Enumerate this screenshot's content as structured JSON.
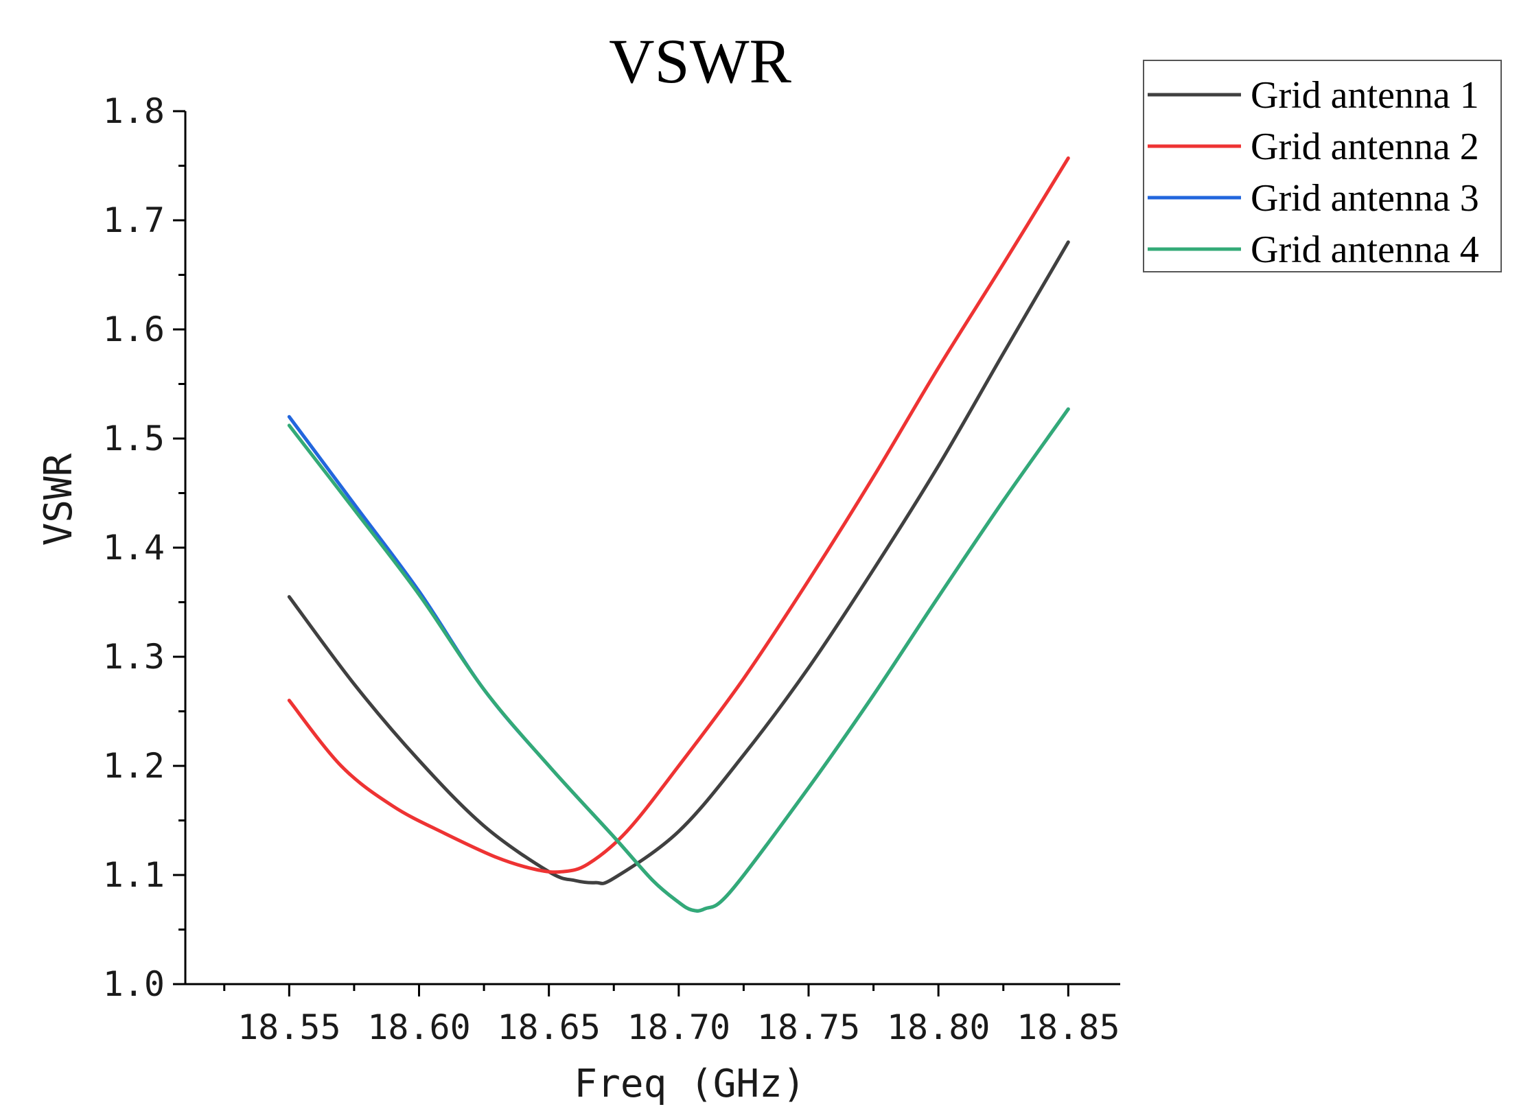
{
  "chart_data": {
    "type": "line",
    "title": "VSWR",
    "xlabel": "Freq (GHz)",
    "ylabel": "VSWR",
    "xlim": [
      18.51,
      18.87
    ],
    "ylim": [
      1.0,
      1.8
    ],
    "x_ticks": [
      18.55,
      18.6,
      18.65,
      18.7,
      18.75,
      18.8,
      18.85
    ],
    "x_tick_labels": [
      "18.55",
      "18.60",
      "18.65",
      "18.70",
      "18.75",
      "18.80",
      "18.85"
    ],
    "y_ticks": [
      1.0,
      1.1,
      1.2,
      1.3,
      1.4,
      1.5,
      1.6,
      1.7,
      1.8
    ],
    "y_tick_labels": [
      "1.0",
      "1.1",
      "1.2",
      "1.3",
      "1.4",
      "1.5",
      "1.6",
      "1.7",
      "1.8"
    ],
    "grid": false,
    "legend_position": "top-right outside",
    "series": [
      {
        "name": "Grid antenna 1",
        "color": "#404040",
        "x": [
          18.55,
          18.575,
          18.6,
          18.625,
          18.65,
          18.66,
          18.668,
          18.675,
          18.7,
          18.725,
          18.75,
          18.775,
          18.8,
          18.825,
          18.85
        ],
        "y": [
          1.355,
          1.275,
          1.205,
          1.145,
          1.103,
          1.095,
          1.093,
          1.097,
          1.14,
          1.21,
          1.29,
          1.38,
          1.475,
          1.578,
          1.68
        ]
      },
      {
        "name": "Grid antenna 2",
        "color": "#ee3333",
        "x": [
          18.55,
          18.57,
          18.59,
          18.61,
          18.63,
          18.645,
          18.655,
          18.665,
          18.68,
          18.7,
          18.725,
          18.75,
          18.775,
          18.8,
          18.825,
          18.85
        ],
        "y": [
          1.26,
          1.2,
          1.163,
          1.138,
          1.116,
          1.105,
          1.103,
          1.11,
          1.14,
          1.2,
          1.28,
          1.37,
          1.465,
          1.565,
          1.66,
          1.757
        ]
      },
      {
        "name": "Grid antenna 3",
        "color": "#2266dd",
        "x": [
          18.55,
          18.575,
          18.6,
          18.625,
          18.65,
          18.675,
          18.69,
          18.7,
          18.705,
          18.71,
          18.72,
          18.75,
          18.775,
          18.8,
          18.825,
          18.85
        ],
        "y": [
          1.52,
          1.44,
          1.36,
          1.27,
          1.2,
          1.135,
          1.095,
          1.075,
          1.068,
          1.069,
          1.085,
          1.18,
          1.265,
          1.355,
          1.443,
          1.527
        ]
      },
      {
        "name": "Grid antenna 4",
        "color": "#33aa77",
        "x": [
          18.55,
          18.575,
          18.6,
          18.625,
          18.65,
          18.675,
          18.69,
          18.7,
          18.705,
          18.71,
          18.72,
          18.75,
          18.775,
          18.8,
          18.825,
          18.85
        ],
        "y": [
          1.512,
          1.435,
          1.357,
          1.27,
          1.2,
          1.135,
          1.095,
          1.075,
          1.068,
          1.069,
          1.085,
          1.18,
          1.265,
          1.355,
          1.443,
          1.527
        ]
      }
    ]
  }
}
